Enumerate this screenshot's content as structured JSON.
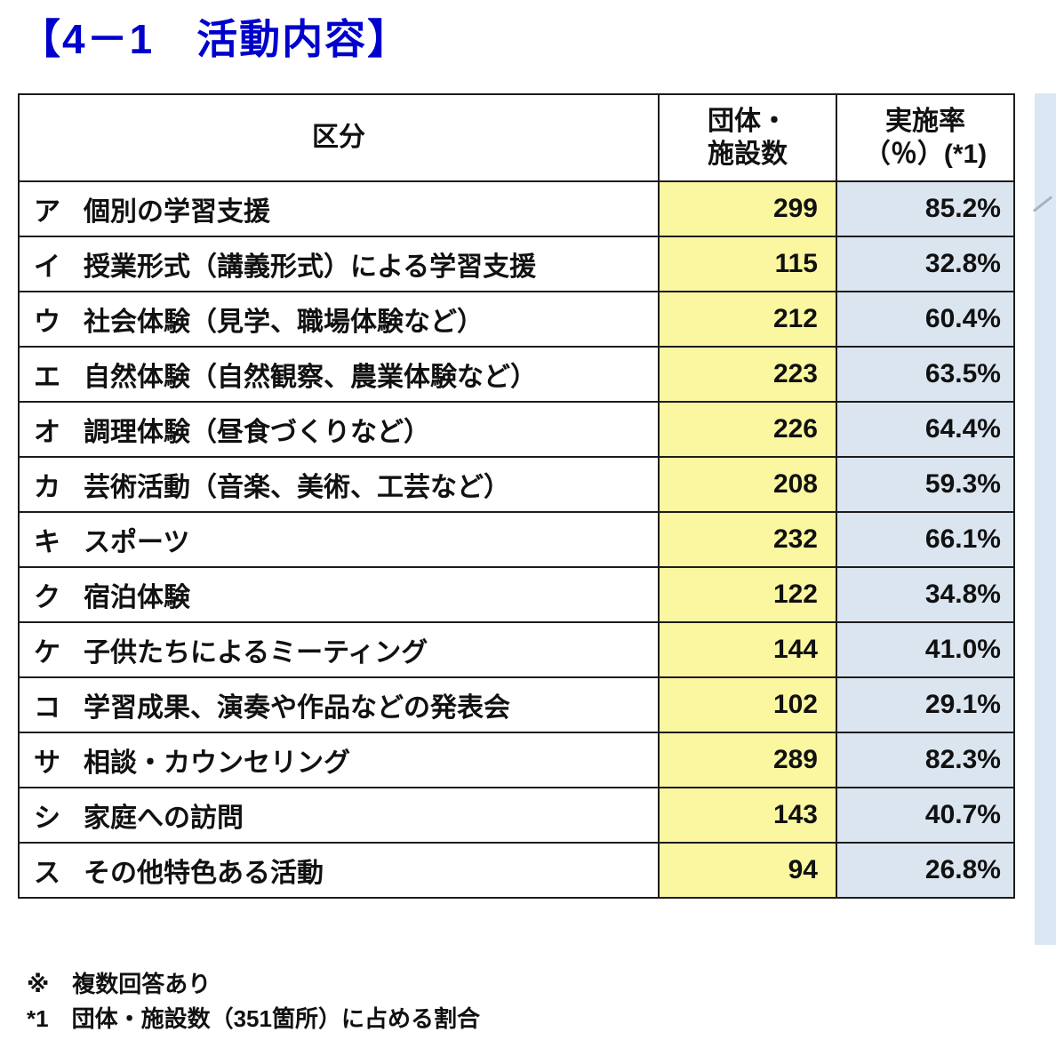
{
  "page": {
    "title": "【4－1　活動内容】"
  },
  "table": {
    "headers": {
      "category": "区分",
      "count": "団体・\n施設数",
      "rate": "実施率\n（％）(*1)"
    },
    "rows": [
      {
        "key": "ア",
        "label": "個別の学習支援",
        "count": "299",
        "rate": "85.2%"
      },
      {
        "key": "イ",
        "label": "授業形式（講義形式）による学習支援",
        "count": "115",
        "rate": "32.8%"
      },
      {
        "key": "ウ",
        "label": "社会体験（見学、職場体験など）",
        "count": "212",
        "rate": "60.4%"
      },
      {
        "key": "エ",
        "label": "自然体験（自然観察、農業体験など）",
        "count": "223",
        "rate": "63.5%"
      },
      {
        "key": "オ",
        "label": "調理体験（昼食づくりなど）",
        "count": "226",
        "rate": "64.4%"
      },
      {
        "key": "カ",
        "label": "芸術活動（音楽、美術、工芸など）",
        "count": "208",
        "rate": "59.3%"
      },
      {
        "key": "キ",
        "label": "スポーツ",
        "count": "232",
        "rate": "66.1%"
      },
      {
        "key": "ク",
        "label": "宿泊体験",
        "count": "122",
        "rate": "34.8%"
      },
      {
        "key": "ケ",
        "label": "子供たちによるミーティング",
        "count": "144",
        "rate": "41.0%"
      },
      {
        "key": "コ",
        "label": "学習成果、演奏や作品などの発表会",
        "count": "102",
        "rate": "29.1%"
      },
      {
        "key": "サ",
        "label": "相談・カウンセリング",
        "count": "289",
        "rate": "82.3%"
      },
      {
        "key": "シ",
        "label": "家庭への訪問",
        "count": "143",
        "rate": "40.7%"
      },
      {
        "key": "ス",
        "label": "その他特色ある活動",
        "count": "94",
        "rate": "26.8%"
      }
    ]
  },
  "footnotes": {
    "note1": "※　複数回答あり",
    "note2": "*1　団体・施設数（351箇所）に占める割合"
  },
  "colors": {
    "title_blue": "#0000cc",
    "count_column_bg": "#fbf7a0",
    "rate_column_bg": "#dbe5ef",
    "border": "#1c1c1c"
  }
}
